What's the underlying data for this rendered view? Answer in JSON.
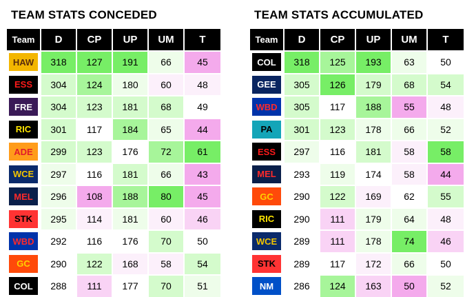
{
  "colors": {
    "g3": "#77ee66",
    "g2": "#a7f59a",
    "g1": "#d4fbcc",
    "g0": "#eefdea",
    "n": "#ffffff",
    "p0": "#fcf0fb",
    "p1": "#f9d3f5",
    "p2": "#f4aaec"
  },
  "conceded": {
    "title": "TEAM STATS CONCEDED",
    "headers": [
      "Team",
      "D",
      "CP",
      "UP",
      "UM",
      "T"
    ],
    "rows": [
      {
        "team": "HAW",
        "bg": "#f3b600",
        "fg": "#5a2d0c",
        "cells": [
          {
            "v": "318",
            "c": "g3"
          },
          {
            "v": "127",
            "c": "g3"
          },
          {
            "v": "191",
            "c": "g3"
          },
          {
            "v": "66",
            "c": "g0"
          },
          {
            "v": "45",
            "c": "p2"
          }
        ]
      },
      {
        "team": "ESS",
        "bg": "#000000",
        "fg": "#ff1a1a",
        "cells": [
          {
            "v": "304",
            "c": "g1"
          },
          {
            "v": "124",
            "c": "g2"
          },
          {
            "v": "180",
            "c": "g0"
          },
          {
            "v": "60",
            "c": "p0"
          },
          {
            "v": "48",
            "c": "p0"
          }
        ]
      },
      {
        "team": "FRE",
        "bg": "#3a1a57",
        "fg": "#ffffff",
        "cells": [
          {
            "v": "304",
            "c": "g1"
          },
          {
            "v": "123",
            "c": "g1"
          },
          {
            "v": "181",
            "c": "g1"
          },
          {
            "v": "68",
            "c": "g1"
          },
          {
            "v": "49",
            "c": "n"
          }
        ]
      },
      {
        "team": "RIC",
        "bg": "#000000",
        "fg": "#ffe600",
        "cells": [
          {
            "v": "301",
            "c": "g1"
          },
          {
            "v": "117",
            "c": "n"
          },
          {
            "v": "184",
            "c": "g2"
          },
          {
            "v": "65",
            "c": "g0"
          },
          {
            "v": "44",
            "c": "p2"
          }
        ]
      },
      {
        "team": "ADE",
        "bg": "#ff9c1a",
        "fg": "#e01b2b",
        "cells": [
          {
            "v": "299",
            "c": "g1"
          },
          {
            "v": "123",
            "c": "g1"
          },
          {
            "v": "176",
            "c": "n"
          },
          {
            "v": "72",
            "c": "g2"
          },
          {
            "v": "61",
            "c": "g3"
          }
        ]
      },
      {
        "team": "WCE",
        "bg": "#0a2a6b",
        "fg": "#f2c400",
        "cells": [
          {
            "v": "297",
            "c": "g0"
          },
          {
            "v": "116",
            "c": "n"
          },
          {
            "v": "181",
            "c": "g1"
          },
          {
            "v": "66",
            "c": "g0"
          },
          {
            "v": "43",
            "c": "p2"
          }
        ]
      },
      {
        "team": "MEL",
        "bg": "#0a1f4a",
        "fg": "#ff2a2a",
        "cells": [
          {
            "v": "296",
            "c": "g0"
          },
          {
            "v": "108",
            "c": "p2"
          },
          {
            "v": "188",
            "c": "g2"
          },
          {
            "v": "80",
            "c": "g3"
          },
          {
            "v": "45",
            "c": "p2"
          }
        ]
      },
      {
        "team": "STK",
        "bg": "#ff3333",
        "fg": "#000000",
        "cells": [
          {
            "v": "295",
            "c": "g0"
          },
          {
            "v": "114",
            "c": "p0"
          },
          {
            "v": "181",
            "c": "g0"
          },
          {
            "v": "60",
            "c": "p0"
          },
          {
            "v": "46",
            "c": "p1"
          }
        ]
      },
      {
        "team": "WBD",
        "bg": "#0033aa",
        "fg": "#ff2a2a",
        "cells": [
          {
            "v": "292",
            "c": "n"
          },
          {
            "v": "116",
            "c": "n"
          },
          {
            "v": "176",
            "c": "n"
          },
          {
            "v": "70",
            "c": "g1"
          },
          {
            "v": "50",
            "c": "n"
          }
        ]
      },
      {
        "team": "GC",
        "bg": "#ff4a0a",
        "fg": "#ffd200",
        "cells": [
          {
            "v": "290",
            "c": "n"
          },
          {
            "v": "122",
            "c": "g1"
          },
          {
            "v": "168",
            "c": "p0"
          },
          {
            "v": "58",
            "c": "p0"
          },
          {
            "v": "54",
            "c": "g1"
          }
        ]
      },
      {
        "team": "COL",
        "bg": "#000000",
        "fg": "#ffffff",
        "cells": [
          {
            "v": "288",
            "c": "n"
          },
          {
            "v": "111",
            "c": "p1"
          },
          {
            "v": "177",
            "c": "n"
          },
          {
            "v": "70",
            "c": "g1"
          },
          {
            "v": "51",
            "c": "g0"
          }
        ]
      }
    ]
  },
  "accumulated": {
    "title": "TEAM STATS ACCUMULATED",
    "headers": [
      "Team",
      "D",
      "CP",
      "UP",
      "UM",
      "T"
    ],
    "rows": [
      {
        "team": "COL",
        "bg": "#000000",
        "fg": "#ffffff",
        "cells": [
          {
            "v": "318",
            "c": "g3"
          },
          {
            "v": "125",
            "c": "g2"
          },
          {
            "v": "193",
            "c": "g3"
          },
          {
            "v": "63",
            "c": "g0"
          },
          {
            "v": "50",
            "c": "n"
          }
        ]
      },
      {
        "team": "GEE",
        "bg": "#0a2560",
        "fg": "#ffffff",
        "cells": [
          {
            "v": "305",
            "c": "g1"
          },
          {
            "v": "126",
            "c": "g3"
          },
          {
            "v": "179",
            "c": "g1"
          },
          {
            "v": "68",
            "c": "g1"
          },
          {
            "v": "54",
            "c": "g1"
          }
        ]
      },
      {
        "team": "WBD",
        "bg": "#0033aa",
        "fg": "#ff2a2a",
        "cells": [
          {
            "v": "305",
            "c": "g1"
          },
          {
            "v": "117",
            "c": "n"
          },
          {
            "v": "188",
            "c": "g2"
          },
          {
            "v": "55",
            "c": "p2"
          },
          {
            "v": "48",
            "c": "p0"
          }
        ]
      },
      {
        "team": "PA",
        "bg": "#14a5b8",
        "fg": "#000000",
        "cells": [
          {
            "v": "301",
            "c": "g1"
          },
          {
            "v": "123",
            "c": "g1"
          },
          {
            "v": "178",
            "c": "g0"
          },
          {
            "v": "66",
            "c": "g0"
          },
          {
            "v": "52",
            "c": "g0"
          }
        ]
      },
      {
        "team": "ESS",
        "bg": "#000000",
        "fg": "#ff1a1a",
        "cells": [
          {
            "v": "297",
            "c": "g0"
          },
          {
            "v": "116",
            "c": "n"
          },
          {
            "v": "181",
            "c": "g1"
          },
          {
            "v": "58",
            "c": "p0"
          },
          {
            "v": "58",
            "c": "g3"
          }
        ]
      },
      {
        "team": "MEL",
        "bg": "#0a1f4a",
        "fg": "#ff2a2a",
        "cells": [
          {
            "v": "293",
            "c": "n"
          },
          {
            "v": "119",
            "c": "g0"
          },
          {
            "v": "174",
            "c": "n"
          },
          {
            "v": "58",
            "c": "p0"
          },
          {
            "v": "44",
            "c": "p2"
          }
        ]
      },
      {
        "team": "GC",
        "bg": "#ff4a0a",
        "fg": "#ffd200",
        "cells": [
          {
            "v": "290",
            "c": "n"
          },
          {
            "v": "122",
            "c": "g1"
          },
          {
            "v": "169",
            "c": "p0"
          },
          {
            "v": "62",
            "c": "n"
          },
          {
            "v": "55",
            "c": "g1"
          }
        ]
      },
      {
        "team": "RIC",
        "bg": "#000000",
        "fg": "#ffe600",
        "cells": [
          {
            "v": "290",
            "c": "n"
          },
          {
            "v": "111",
            "c": "p1"
          },
          {
            "v": "179",
            "c": "g0"
          },
          {
            "v": "64",
            "c": "g0"
          },
          {
            "v": "48",
            "c": "p0"
          }
        ]
      },
      {
        "team": "WCE",
        "bg": "#0a2a6b",
        "fg": "#f2c400",
        "cells": [
          {
            "v": "289",
            "c": "n"
          },
          {
            "v": "111",
            "c": "p1"
          },
          {
            "v": "178",
            "c": "g0"
          },
          {
            "v": "74",
            "c": "g3"
          },
          {
            "v": "46",
            "c": "p1"
          }
        ]
      },
      {
        "team": "STK",
        "bg": "#ff3333",
        "fg": "#000000",
        "cells": [
          {
            "v": "289",
            "c": "n"
          },
          {
            "v": "117",
            "c": "n"
          },
          {
            "v": "172",
            "c": "p0"
          },
          {
            "v": "66",
            "c": "g0"
          },
          {
            "v": "50",
            "c": "n"
          }
        ]
      },
      {
        "team": "NM",
        "bg": "#0050c8",
        "fg": "#ffffff",
        "cells": [
          {
            "v": "286",
            "c": "n"
          },
          {
            "v": "124",
            "c": "g2"
          },
          {
            "v": "163",
            "c": "p1"
          },
          {
            "v": "50",
            "c": "p2"
          },
          {
            "v": "52",
            "c": "g0"
          }
        ]
      }
    ]
  }
}
